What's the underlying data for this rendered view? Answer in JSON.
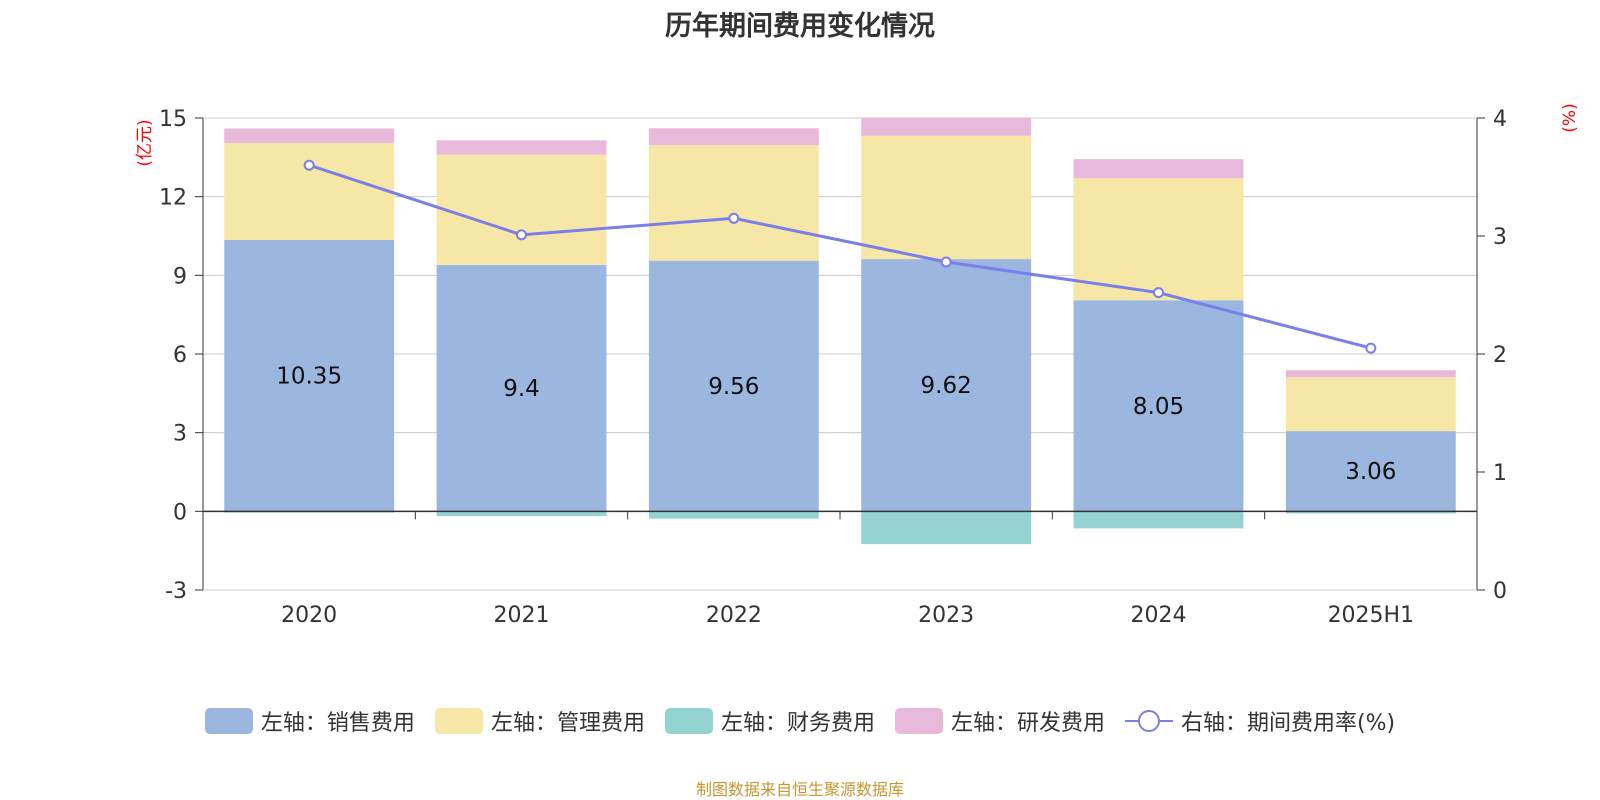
{
  "chart_data": {
    "type": "bar",
    "title": "历年期间费用变化情况",
    "categories": [
      "2020",
      "2021",
      "2022",
      "2023",
      "2024",
      "2025H1"
    ],
    "left_axis_unit": "(亿元)",
    "right_axis_unit": "(%)",
    "left_ylim": [
      -3,
      15
    ],
    "left_ticks": [
      -3,
      0,
      3,
      6,
      9,
      12,
      15
    ],
    "right_ylim": [
      0,
      4
    ],
    "right_ticks": [
      0,
      1,
      2,
      3,
      4
    ],
    "grid": true,
    "legend_position": "bottom",
    "stacked": true,
    "series": [
      {
        "name": "左轴：销售费用",
        "axis": "left",
        "color": "#9bb7e0",
        "values": [
          10.35,
          9.4,
          9.56,
          9.62,
          8.05,
          3.06
        ],
        "labels": [
          "10.35",
          "9.4",
          "9.56",
          "9.62",
          "8.05",
          "3.06"
        ]
      },
      {
        "name": "左轴：管理费用",
        "axis": "left",
        "color": "#f7e7a6",
        "values": [
          3.7,
          4.2,
          4.4,
          4.7,
          4.65,
          2.05
        ]
      },
      {
        "name": "左轴：财务费用",
        "axis": "left",
        "color": "#95d3d3",
        "values": [
          -0.05,
          -0.18,
          -0.28,
          -1.25,
          -0.65,
          -0.08
        ]
      },
      {
        "name": "左轴：研发费用",
        "axis": "left",
        "color": "#e8b9da",
        "values": [
          0.55,
          0.55,
          0.65,
          0.68,
          0.73,
          0.27
        ]
      },
      {
        "name": "右轴：期间费用率(%)",
        "axis": "right",
        "type": "line",
        "color": "#7b7fe8",
        "values": [
          3.6,
          3.01,
          3.15,
          2.78,
          2.52,
          2.05
        ]
      }
    ]
  },
  "source_note": "制图数据来自恒生聚源数据库"
}
